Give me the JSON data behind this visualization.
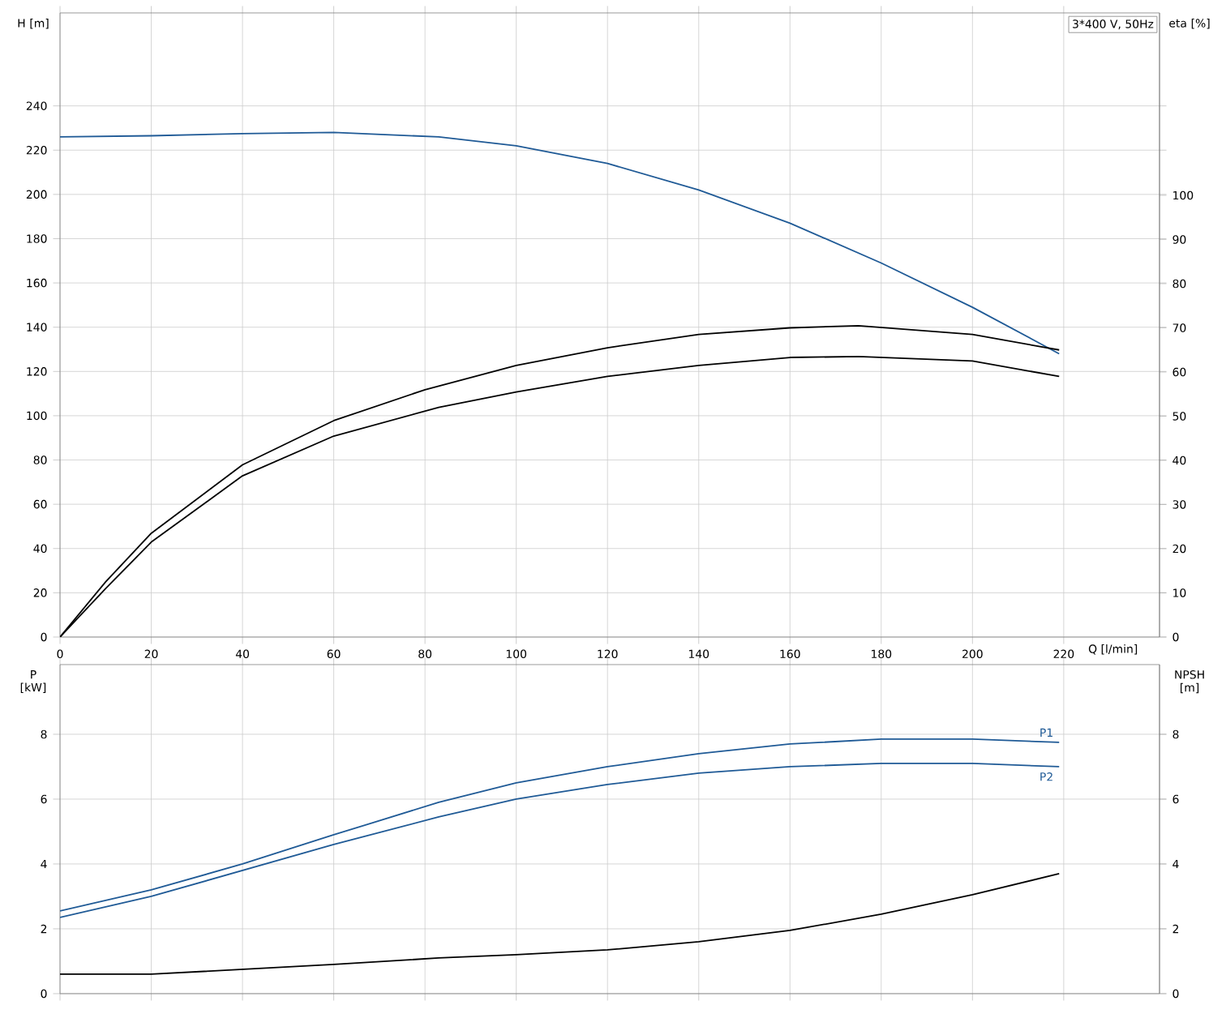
{
  "chart_data": [
    {
      "type": "line",
      "xlabel": "Q [l/min]",
      "ylabel": "H [m]",
      "y2label": "eta [%]",
      "xlim": [
        0,
        241
      ],
      "xticks": [
        0,
        20,
        40,
        60,
        80,
        100,
        120,
        140,
        160,
        180,
        200,
        220
      ],
      "ylim": [
        0,
        282
      ],
      "yticks": [
        0,
        20,
        40,
        60,
        80,
        100,
        120,
        140,
        160,
        180,
        200,
        220,
        240
      ],
      "y2lim": [
        0,
        141.3
      ],
      "y2ticks": [
        0,
        10,
        20,
        30,
        40,
        50,
        60,
        70,
        80,
        90,
        100
      ],
      "grid": true,
      "annotations": [
        "3*400 V, 50Hz"
      ],
      "series": [
        {
          "color": "#1f5a96",
          "x": [
            0,
            20,
            40,
            60,
            83,
            100,
            120,
            140,
            160,
            180,
            200,
            219
          ],
          "values": [
            226,
            226.5,
            227.5,
            228,
            226,
            222,
            214,
            202,
            187,
            169,
            149,
            128
          ]
        },
        {
          "color": "#000000",
          "axis": "y2",
          "x": [
            0,
            10,
            20,
            40,
            60,
            80,
            100,
            120,
            140,
            160,
            175,
            200,
            219
          ],
          "values": [
            0,
            12.5,
            23.5,
            39,
            49,
            56,
            61.5,
            65.5,
            68.5,
            70,
            70.5,
            68.5,
            65
          ]
        },
        {
          "color": "#000000",
          "axis": "y2",
          "x": [
            0,
            10,
            20,
            40,
            60,
            83,
            100,
            120,
            140,
            160,
            175,
            200,
            219
          ],
          "values": [
            0,
            11,
            21.5,
            36.5,
            45.5,
            52,
            55.5,
            59,
            61.5,
            63.3,
            63.5,
            62.5,
            59
          ]
        }
      ]
    },
    {
      "type": "line",
      "ylabel": "P [kW]",
      "y2label": "NPSH [m]",
      "xlim": [
        0,
        241
      ],
      "xticks": [
        0,
        20,
        40,
        60,
        80,
        100,
        120,
        140,
        160,
        180,
        200,
        220
      ],
      "ylim": [
        0,
        10.15
      ],
      "yticks": [
        0,
        2,
        4,
        6,
        8
      ],
      "y2lim": [
        0,
        10.15
      ],
      "y2ticks": [
        0,
        2,
        4,
        6,
        8
      ],
      "grid": true,
      "tick_labels": "y",
      "series": [
        {
          "name": "P1",
          "color": "#1f5a96",
          "x": [
            0,
            20,
            40,
            60,
            83,
            100,
            120,
            140,
            160,
            180,
            200,
            219
          ],
          "values": [
            2.55,
            3.2,
            4.0,
            4.9,
            5.9,
            6.5,
            7.0,
            7.4,
            7.7,
            7.85,
            7.85,
            7.75
          ]
        },
        {
          "name": "P2",
          "color": "#1f5a96",
          "x": [
            0,
            20,
            40,
            60,
            83,
            100,
            120,
            140,
            160,
            180,
            200,
            219
          ],
          "values": [
            2.35,
            3.0,
            3.8,
            4.6,
            5.45,
            6.0,
            6.45,
            6.8,
            7.0,
            7.1,
            7.1,
            7.0
          ]
        },
        {
          "color": "#000000",
          "axis": "y2",
          "x": [
            0,
            20,
            40,
            60,
            83,
            100,
            120,
            140,
            160,
            180,
            200,
            219
          ],
          "values": [
            0.6,
            0.6,
            0.75,
            0.9,
            1.1,
            1.2,
            1.35,
            1.6,
            1.95,
            2.45,
            3.05,
            3.7
          ]
        }
      ]
    }
  ]
}
